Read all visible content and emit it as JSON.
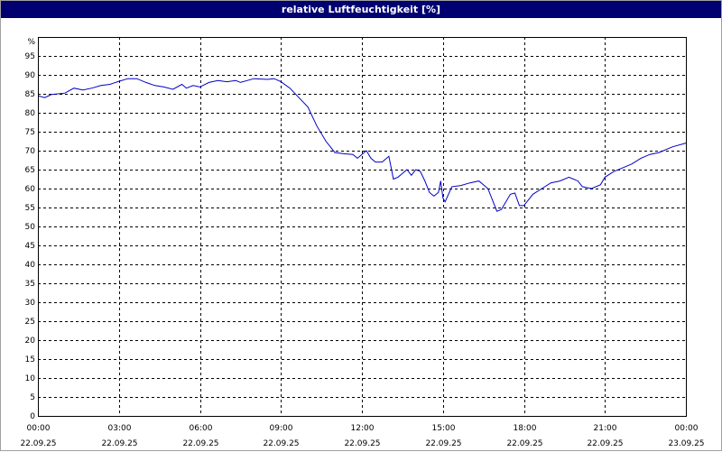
{
  "window": {
    "title": "relative Luftfeuchtigkeit [%]"
  },
  "colors": {
    "title_bar": "#000070",
    "line": "#0000c8",
    "grid": "#000000",
    "background": "#ffffff"
  },
  "chart_data": {
    "type": "line",
    "title": "relative Luftfeuchtigkeit [%]",
    "ylabel": "%",
    "xlabel": "",
    "ylim": [
      0,
      100
    ],
    "yticks": [
      0,
      5,
      10,
      15,
      20,
      25,
      30,
      35,
      40,
      45,
      50,
      55,
      60,
      65,
      70,
      75,
      80,
      85,
      90,
      95
    ],
    "xlim": [
      "22.09.25 00:00",
      "23.09.25 00:00"
    ],
    "xticks": [
      {
        "time": "00:00",
        "date": "22.09.25"
      },
      {
        "time": "03:00",
        "date": "22.09.25"
      },
      {
        "time": "06:00",
        "date": "22.09.25"
      },
      {
        "time": "09:00",
        "date": "22.09.25"
      },
      {
        "time": "12:00",
        "date": "22.09.25"
      },
      {
        "time": "15:00",
        "date": "22.09.25"
      },
      {
        "time": "18:00",
        "date": "22.09.25"
      },
      {
        "time": "21:00",
        "date": "22.09.25"
      },
      {
        "time": "00:00",
        "date": "23.09.25"
      }
    ],
    "grid": true,
    "legend": "none",
    "series": [
      {
        "points": [
          [
            "22.09.25 00:00",
            84.5
          ],
          [
            "22.09.25 00:15",
            84.0
          ],
          [
            "22.09.25 00:30",
            84.8
          ],
          [
            "22.09.25 01:00",
            85.2
          ],
          [
            "22.09.25 01:20",
            86.5
          ],
          [
            "22.09.25 01:40",
            86.0
          ],
          [
            "22.09.25 02:00",
            86.5
          ],
          [
            "22.09.25 02:20",
            87.2
          ],
          [
            "22.09.25 02:40",
            87.5
          ],
          [
            "22.09.25 03:00",
            88.3
          ],
          [
            "22.09.25 03:20",
            89.0
          ],
          [
            "22.09.25 03:40",
            89.0
          ],
          [
            "22.09.25 04:00",
            88.0
          ],
          [
            "22.09.25 04:20",
            87.2
          ],
          [
            "22.09.25 04:40",
            86.8
          ],
          [
            "22.09.25 05:00",
            86.2
          ],
          [
            "22.09.25 05:20",
            87.5
          ],
          [
            "22.09.25 05:30",
            86.5
          ],
          [
            "22.09.25 05:45",
            87.2
          ],
          [
            "22.09.25 06:00",
            86.8
          ],
          [
            "22.09.25 06:20",
            88.0
          ],
          [
            "22.09.25 06:40",
            88.5
          ],
          [
            "22.09.25 07:00",
            88.2
          ],
          [
            "22.09.25 07:20",
            88.5
          ],
          [
            "22.09.25 07:30",
            88.0
          ],
          [
            "22.09.25 08:00",
            89.0
          ],
          [
            "22.09.25 08:30",
            88.8
          ],
          [
            "22.09.25 08:45",
            89.0
          ],
          [
            "22.09.25 09:00",
            88.2
          ],
          [
            "22.09.25 09:20",
            86.5
          ],
          [
            "22.09.25 09:40",
            84.0
          ],
          [
            "22.09.25 10:00",
            81.5
          ],
          [
            "22.09.25 10:20",
            76.5
          ],
          [
            "22.09.25 10:40",
            72.5
          ],
          [
            "22.09.25 11:00",
            69.5
          ],
          [
            "22.09.25 11:20",
            69.2
          ],
          [
            "22.09.25 11:40",
            69.0
          ],
          [
            "22.09.25 11:50",
            68.0
          ],
          [
            "22.09.25 12:00",
            69.0
          ],
          [
            "22.09.25 12:10",
            70.0
          ],
          [
            "22.09.25 12:20",
            68.0
          ],
          [
            "22.09.25 12:30",
            67.0
          ],
          [
            "22.09.25 12:45",
            67.0
          ],
          [
            "22.09.25 13:00",
            68.5
          ],
          [
            "22.09.25 13:10",
            62.5
          ],
          [
            "22.09.25 13:20",
            63.0
          ],
          [
            "22.09.25 13:30",
            64.0
          ],
          [
            "22.09.25 13:40",
            65.0
          ],
          [
            "22.09.25 13:50",
            63.5
          ],
          [
            "22.09.25 14:00",
            65.0
          ],
          [
            "22.09.25 14:10",
            64.5
          ],
          [
            "22.09.25 14:20",
            62.0
          ],
          [
            "22.09.25 14:30",
            59.0
          ],
          [
            "22.09.25 14:40",
            58.0
          ],
          [
            "22.09.25 14:50",
            59.0
          ],
          [
            "22.09.25 14:55",
            62.0
          ],
          [
            "22.09.25 15:00",
            57.5
          ],
          [
            "22.09.25 15:05",
            56.5
          ],
          [
            "22.09.25 15:20",
            60.5
          ],
          [
            "22.09.25 15:40",
            60.8
          ],
          [
            "22.09.25 16:00",
            61.5
          ],
          [
            "22.09.25 16:20",
            62.0
          ],
          [
            "22.09.25 16:30",
            61.0
          ],
          [
            "22.09.25 16:40",
            60.0
          ],
          [
            "22.09.25 17:00",
            54.0
          ],
          [
            "22.09.25 17:10",
            54.5
          ],
          [
            "22.09.25 17:30",
            58.5
          ],
          [
            "22.09.25 17:40",
            58.8
          ],
          [
            "22.09.25 17:50",
            55.5
          ],
          [
            "22.09.25 18:00",
            55.5
          ],
          [
            "22.09.25 18:20",
            58.5
          ],
          [
            "22.09.25 18:40",
            60.0
          ],
          [
            "22.09.25 19:00",
            61.5
          ],
          [
            "22.09.25 19:20",
            62.0
          ],
          [
            "22.09.25 19:40",
            63.0
          ],
          [
            "22.09.25 20:00",
            62.0
          ],
          [
            "22.09.25 20:10",
            60.5
          ],
          [
            "22.09.25 20:30",
            60.0
          ],
          [
            "22.09.25 20:50",
            61.0
          ],
          [
            "22.09.25 21:00",
            63.0
          ],
          [
            "22.09.25 21:20",
            64.5
          ],
          [
            "22.09.25 21:40",
            65.5
          ],
          [
            "22.09.25 22:00",
            66.5
          ],
          [
            "22.09.25 22:20",
            68.0
          ],
          [
            "22.09.25 22:40",
            69.0
          ],
          [
            "22.09.25 23:00",
            69.5
          ],
          [
            "22.09.25 23:30",
            71.0
          ],
          [
            "23.09.25 00:00",
            72.0
          ]
        ]
      }
    ]
  }
}
